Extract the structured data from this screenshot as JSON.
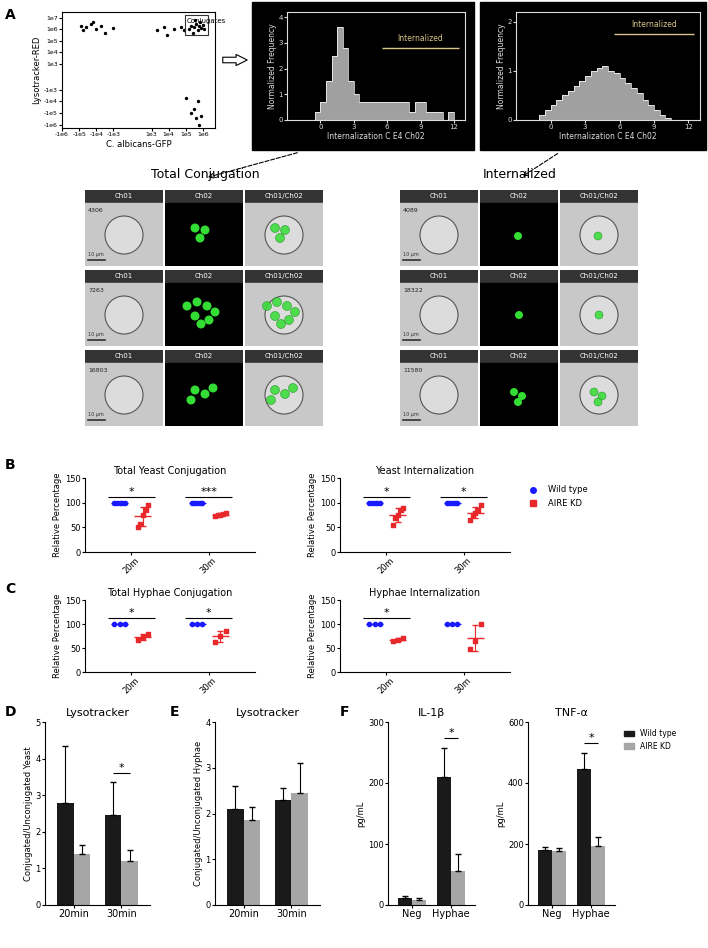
{
  "chart_data": [
    {
      "panel": "A",
      "type": "scatter",
      "x_label": "C. albicans-GFP",
      "y_label": "Lysotracker-RED",
      "x": [
        -80000,
        -40000,
        -20000,
        -10000,
        -5000,
        -3000,
        -1000,
        2000,
        5000,
        -60000,
        -15000,
        8000,
        150000,
        200000,
        300000,
        400000,
        500000,
        600000,
        800000,
        1000000,
        250000,
        700000,
        1200000,
        350000,
        20000,
        50000,
        80000,
        200000,
        400000,
        600000,
        300000,
        800000,
        100000,
        500000
      ],
      "y": [
        2000000,
        1500000,
        3000000,
        1000000,
        2000000,
        500000,
        1200000,
        800000,
        1500000,
        800000,
        4000000,
        300000,
        1000000,
        2000000,
        1500000,
        3000000,
        800000,
        2000000,
        1200000,
        2500000,
        500000,
        4000000,
        1000000,
        6000000,
        1000000,
        1500000,
        800000,
        -100000,
        -300000,
        -1000000,
        -50000,
        -200000,
        -5000,
        -10000
      ],
      "color": "#000000",
      "marker": "circle",
      "xlim": [
        -1000000,
        5000000
      ],
      "xticks": [
        {
          "value": -1000000,
          "label": "-1e6"
        },
        {
          "value": -100000,
          "label": "-1e5"
        },
        {
          "value": -10000,
          "label": "-1e4"
        },
        {
          "value": -1000,
          "label": "-1e3"
        },
        {
          "value": 1000,
          "label": "1e3"
        },
        {
          "value": 10000,
          "label": "1e4"
        },
        {
          "value": 100000,
          "label": "1e5"
        },
        {
          "value": 1000000,
          "label": "1e6"
        }
      ],
      "ylim": [
        -2000000,
        30000000
      ],
      "yticks": [
        {
          "value": -1000000,
          "label": "-1e6"
        },
        {
          "value": -100000,
          "label": "-1e5"
        },
        {
          "value": -10000,
          "label": "-1e4"
        },
        {
          "value": -1000,
          "label": "-1e3"
        },
        {
          "value": 1000,
          "label": "1e3"
        },
        {
          "value": 10000,
          "label": "1e4"
        },
        {
          "value": 100000,
          "label": "1e5"
        },
        {
          "value": 1000000,
          "label": "1e6"
        },
        {
          "value": 10000000,
          "label": "1e7"
        }
      ],
      "gate": {
        "label": "Conjugates",
        "x": [
          90000,
          2000000
        ],
        "y": [
          300000,
          15000000
        ]
      }
    },
    {
      "type": "histogram",
      "x_label": "Internalization C E4 Ch02",
      "y_label": "Normalized Frequency",
      "bins": [
        -1,
        -0.5,
        0,
        0.5,
        1,
        1.5,
        2,
        2.5,
        3,
        3.5,
        4,
        4.5,
        5,
        5.5,
        6,
        6.5,
        7,
        7.5,
        8,
        8.5,
        9,
        9.5,
        10,
        10.5,
        11,
        11.5,
        12,
        12.5
      ],
      "counts": [
        0,
        0.3,
        0.7,
        1.5,
        2.5,
        3.6,
        2.8,
        1.5,
        1.0,
        0.7,
        0.7,
        0.7,
        0.7,
        0.7,
        0.7,
        0.7,
        0.7,
        0.7,
        0.3,
        0.7,
        0.7,
        0.3,
        0.3,
        0.3,
        0,
        0.3,
        0
      ],
      "color": "#a0a0a0",
      "xlim": [
        -3,
        13
      ],
      "xticks": [
        0,
        3,
        6,
        9,
        12
      ],
      "ylim": [
        0,
        4.2
      ],
      "yticks": [
        0,
        1,
        2,
        3,
        4
      ],
      "gate": {
        "label": "Internalized",
        "x": [
          5.5,
          12.5
        ],
        "y": 2.8
      }
    },
    {
      "type": "histogram",
      "x_label": "Internalization C E4 Ch02",
      "y_label": "Normalized Frequency",
      "bins": [
        -1,
        -0.5,
        0,
        0.5,
        1,
        1.5,
        2,
        2.5,
        3,
        3.5,
        4,
        4.5,
        5,
        5.5,
        6,
        6.5,
        7,
        7.5,
        8,
        8.5,
        9,
        9.5,
        10,
        10.5
      ],
      "counts": [
        0.1,
        0.2,
        0.3,
        0.4,
        0.5,
        0.6,
        0.7,
        0.8,
        0.9,
        1.0,
        1.05,
        1.1,
        1.0,
        0.95,
        0.85,
        0.75,
        0.65,
        0.55,
        0.4,
        0.3,
        0.2,
        0.1,
        0.05
      ],
      "color": "#a0a0a0",
      "xlim": [
        -3,
        13
      ],
      "xticks": [
        0,
        3,
        6,
        9,
        12
      ],
      "ylim": [
        0,
        2.2
      ],
      "yticks": [
        0,
        1,
        2
      ],
      "gate": {
        "label": "Internalized",
        "x": [
          5.5,
          12.5
        ],
        "y": 1.75
      }
    },
    {
      "panel": "B",
      "type": "dot",
      "title": "Total Yeast Conjugation",
      "y_label": "Relative Percentage",
      "categories": [
        "20m",
        "30m"
      ],
      "series": [
        {
          "name": "Wild type",
          "color": "#1a1aff",
          "marker": "circle",
          "values": [
            [
              100,
              100,
              100,
              100,
              100
            ],
            [
              100,
              100,
              100,
              100,
              100
            ]
          ]
        },
        {
          "name": "AIRE KD",
          "color": "#e8282b",
          "marker": "square",
          "values": [
            [
              50,
              57,
              75,
              85,
              95
            ],
            [
              72,
              74,
              76,
              77,
              80
            ]
          ]
        }
      ],
      "significance": [
        "*",
        "***"
      ],
      "ylim": [
        0,
        150
      ],
      "yticks": [
        0,
        50,
        100,
        150
      ]
    },
    {
      "type": "dot",
      "title": "Yeast Internalization",
      "y_label": "Relative Percentage",
      "categories": [
        "20m",
        "30m"
      ],
      "series": [
        {
          "name": "Wild type",
          "color": "#1a1aff",
          "marker": "circle",
          "values": [
            [
              100,
              100,
              100,
              100,
              100
            ],
            [
              100,
              100,
              100,
              100,
              100
            ]
          ]
        },
        {
          "name": "AIRE KD",
          "color": "#e8282b",
          "marker": "square",
          "values": [
            [
              55,
              68,
              75,
              85,
              90
            ],
            [
              65,
              74,
              80,
              86,
              95
            ]
          ]
        }
      ],
      "significance": [
        "*",
        "*"
      ],
      "ylim": [
        0,
        150
      ],
      "yticks": [
        0,
        50,
        100,
        150
      ],
      "legend": "right"
    },
    {
      "panel": "C",
      "type": "dot",
      "title": "Total Hyphae Conjugation",
      "y_label": "Relative Percentage",
      "categories": [
        "20m",
        "30m"
      ],
      "series": [
        {
          "name": "Wild type",
          "color": "#1a1aff",
          "marker": "circle",
          "values": [
            [
              100,
              100,
              100
            ],
            [
              100,
              100,
              100
            ]
          ]
        },
        {
          "name": "AIRE KD",
          "color": "#e8282b",
          "marker": "square",
          "values": [
            [
              66,
              72,
              80
            ],
            [
              62,
              75,
              86
            ]
          ]
        }
      ],
      "significance": [
        "*",
        "*"
      ],
      "ylim": [
        0,
        150
      ],
      "yticks": [
        0,
        50,
        100,
        150
      ]
    },
    {
      "type": "dot",
      "title": "Hyphae Internalization",
      "y_label": "Relative Percentage",
      "categories": [
        "20m",
        "30m"
      ],
      "series": [
        {
          "name": "Wild type",
          "color": "#1a1aff",
          "marker": "circle",
          "values": [
            [
              100,
              100,
              100
            ],
            [
              100,
              100,
              100
            ]
          ]
        },
        {
          "name": "AIRE KD",
          "color": "#e8282b",
          "marker": "square",
          "values": [
            [
              65,
              67,
              70
            ],
            [
              48,
              65,
              100
            ]
          ]
        }
      ],
      "significance": [
        "*",
        null
      ],
      "ylim": [
        0,
        150
      ],
      "yticks": [
        0,
        50,
        100,
        150
      ]
    },
    {
      "panel": "D",
      "type": "bar",
      "title": "Lysotracker",
      "y_label": "Conjugated/Unconjugated Yeast",
      "categories": [
        "20min",
        "30min"
      ],
      "series": [
        {
          "name": "Wild type",
          "color": "#1a1a1a",
          "values": [
            2.8,
            2.45
          ],
          "errors": [
            1.55,
            0.9
          ]
        },
        {
          "name": "AIRE KD",
          "color": "#a6a6a6",
          "values": [
            1.4,
            1.2
          ],
          "errors": [
            0.25,
            0.3
          ]
        }
      ],
      "significance": [
        null,
        "*"
      ],
      "ylim": [
        0,
        5
      ],
      "yticks": [
        0,
        1,
        2,
        3,
        4,
        5
      ]
    },
    {
      "panel": "E",
      "type": "bar",
      "title": "Lysotracker",
      "y_label": "Conjugated/Unconjugated Hyphae",
      "categories": [
        "20min",
        "30min"
      ],
      "series": [
        {
          "name": "Wild type",
          "color": "#1a1a1a",
          "values": [
            2.1,
            2.3
          ],
          "errors": [
            0.5,
            0.25
          ]
        },
        {
          "name": "AIRE KD",
          "color": "#a6a6a6",
          "values": [
            1.85,
            2.45
          ],
          "errors": [
            0.3,
            0.65
          ]
        }
      ],
      "significance": [
        null,
        null
      ],
      "ylim": [
        0,
        4
      ],
      "yticks": [
        0,
        1,
        2,
        3,
        4
      ]
    },
    {
      "panel": "F",
      "type": "bar",
      "title": "IL-1β",
      "y_label": "pg/mL",
      "categories": [
        "Neg",
        "Hyphae"
      ],
      "series": [
        {
          "name": "Wild type",
          "color": "#1a1a1a",
          "values": [
            12,
            210
          ],
          "errors": [
            2,
            48
          ]
        },
        {
          "name": "AIRE KD",
          "color": "#a6a6a6",
          "values": [
            8,
            55
          ],
          "errors": [
            3,
            28
          ]
        }
      ],
      "significance": [
        null,
        "*"
      ],
      "ylim": [
        0,
        300
      ],
      "yticks": [
        0,
        100,
        200,
        300
      ]
    },
    {
      "type": "bar",
      "title": "TNF-α",
      "y_label": "pg/mL",
      "categories": [
        "Neg",
        "Hyphae"
      ],
      "series": [
        {
          "name": "Wild type",
          "color": "#1a1a1a",
          "values": [
            180,
            445
          ],
          "errors": [
            10,
            55
          ]
        },
        {
          "name": "AIRE KD",
          "color": "#a6a6a6",
          "values": [
            178,
            195
          ],
          "errors": [
            8,
            28
          ]
        }
      ],
      "significance": [
        null,
        "*"
      ],
      "ylim": [
        0,
        600
      ],
      "yticks": [
        0,
        200,
        400,
        600
      ],
      "legend": "right"
    }
  ],
  "image_gallery": [
    {
      "title": "Total Conjugation",
      "channels": [
        "Ch01",
        "Ch02",
        "Ch01/Ch02"
      ],
      "objects": [
        "4306",
        "7263",
        "16803"
      ],
      "scale_bar": "10 µm"
    },
    {
      "title": "Internalized",
      "channels": [
        "Ch01",
        "Ch02",
        "Ch01/Ch02"
      ],
      "objects": [
        "4089",
        "18322",
        "11580"
      ],
      "scale_bar": "10 µm"
    }
  ]
}
